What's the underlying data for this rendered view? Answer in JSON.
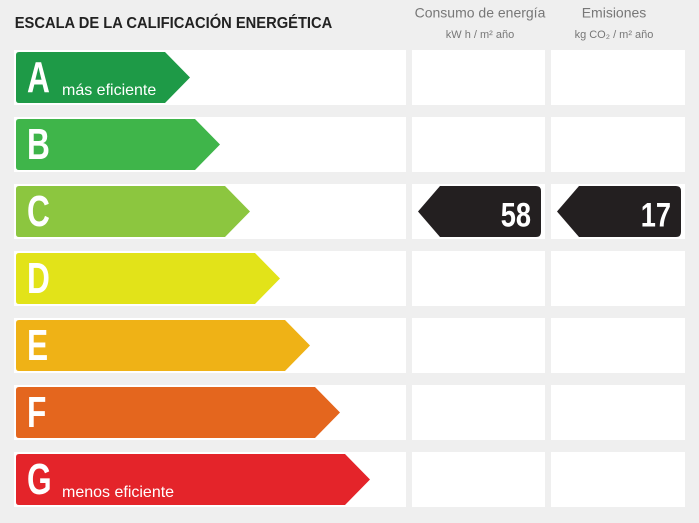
{
  "header": {
    "title": "ESCALA DE LA CALIFICACIÓN ENERGÉTICA"
  },
  "columns": [
    {
      "title": "Consumo de energía",
      "unit": "kW h / m² año"
    },
    {
      "title": "Emisiones",
      "unit": "kg CO₂ / m² año"
    }
  ],
  "rows": [
    {
      "letter": "A",
      "label": "más eficiente",
      "color": "#1e9a47"
    },
    {
      "letter": "B",
      "color": "#3fb54a"
    },
    {
      "letter": "C",
      "color": "#8cc63f",
      "values": [
        58,
        17
      ]
    },
    {
      "letter": "D",
      "color": "#e2e319"
    },
    {
      "letter": "E",
      "color": "#efb216"
    },
    {
      "letter": "F",
      "color": "#e4661e"
    },
    {
      "letter": "G",
      "label": "menos eficiente",
      "color": "#e4242a"
    }
  ]
}
